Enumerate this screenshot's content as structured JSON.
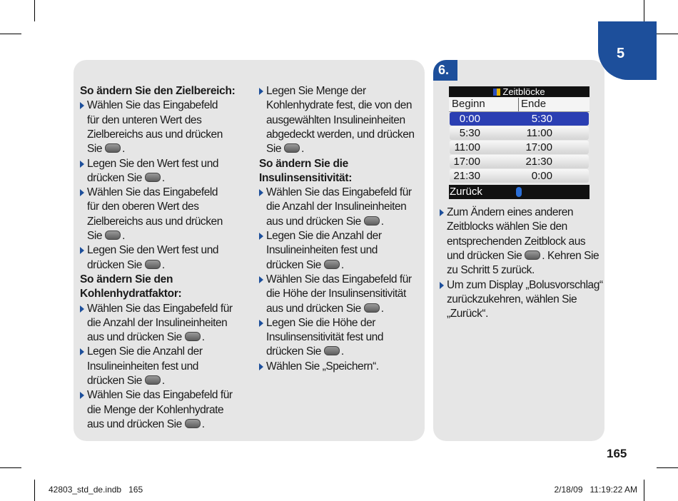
{
  "chapter_tab": "5",
  "left_panel": {
    "columns": [
      [
        {
          "heading": [
            "So ändern Sie den Zielbereich:"
          ]
        },
        {
          "bullet": [
            "Wählen Sie das Eingabefeld",
            "für den unteren Wert des",
            "Zielbereichs aus und drücken",
            [
              "Sie",
              "."
            ]
          ]
        },
        {
          "bullet": [
            "Legen Sie den Wert fest und",
            [
              "drücken Sie",
              "."
            ]
          ]
        },
        {
          "bullet": [
            "Wählen Sie das Eingabefeld",
            "für den oberen Wert des",
            "Zielbereichs aus und drücken",
            [
              "Sie",
              "."
            ]
          ]
        },
        {
          "bullet": [
            "Legen Sie den Wert fest und",
            [
              "drücken Sie",
              "."
            ]
          ]
        },
        {
          "heading": [
            "So ändern Sie den",
            "Kohlenhydratfaktor:"
          ]
        },
        {
          "bullet": [
            "Wählen Sie das Eingabefeld für",
            "die Anzahl der Insulineinheiten",
            [
              "aus und drücken Sie",
              "."
            ]
          ]
        },
        {
          "bullet": [
            "Legen Sie die Anzahl der",
            "Insulineinheiten fest und",
            [
              "drücken Sie",
              "."
            ]
          ]
        },
        {
          "bullet": [
            "Wählen Sie das Eingabefeld für",
            "die Menge der Kohlenhydrate",
            [
              "aus und drücken Sie",
              "."
            ]
          ]
        }
      ],
      [
        {
          "bullet": [
            "Legen Sie Menge der",
            "Kohlenhydrate fest, die von den",
            "ausgewählten Insulineinheiten",
            "abgedeckt werden, und drücken",
            [
              "Sie",
              "."
            ]
          ]
        },
        {
          "heading": [
            "So ändern Sie die",
            "Insulinsensitivität:"
          ]
        },
        {
          "bullet": [
            "Wählen Sie das Eingabefeld für",
            "die Anzahl der Insulineinheiten",
            [
              "aus und drücken Sie",
              "."
            ]
          ]
        },
        {
          "bullet": [
            "Legen Sie die Anzahl der",
            "Insulineinheiten fest und",
            [
              "drücken Sie",
              "."
            ]
          ]
        },
        {
          "bullet": [
            "Wählen Sie das Eingabefeld für",
            "die Höhe der Insulinsensitivität",
            [
              "aus und drücken Sie",
              "."
            ]
          ]
        },
        {
          "bullet": [
            "Legen Sie die Höhe der",
            "Insulinsensitivität fest und",
            [
              "drücken Sie",
              "."
            ]
          ]
        },
        {
          "bullet": [
            "Wählen Sie „Speichern“."
          ]
        }
      ]
    ]
  },
  "right_panel": {
    "step": "6.",
    "screen": {
      "title": "Zeitblöcke",
      "headers": [
        "Beginn",
        "Ende"
      ],
      "rows": [
        [
          "0:00",
          "5:30"
        ],
        [
          "5:30",
          "11:00"
        ],
        [
          "11:00",
          "17:00"
        ],
        [
          "17:00",
          "21:30"
        ],
        [
          "21:30",
          "0:00"
        ]
      ],
      "back": "Zurück"
    },
    "blocks": [
      {
        "bullet": [
          "Zum Ändern eines anderen",
          "Zeitblocks wählen Sie den",
          "entsprechenden Zeitblock aus",
          [
            "und drücken Sie",
            ". Kehren Sie"
          ],
          "zu Schritt 5 zurück."
        ]
      },
      {
        "bullet": [
          "Um zum Display „Bolusvorschlag“",
          "zurückzukehren, wählen Sie",
          "„Zurück“."
        ]
      }
    ]
  },
  "page_number": "165",
  "footer": {
    "left": "42803_std_de.indb   165",
    "right": "2/18/09   11:19:22 AM"
  }
}
